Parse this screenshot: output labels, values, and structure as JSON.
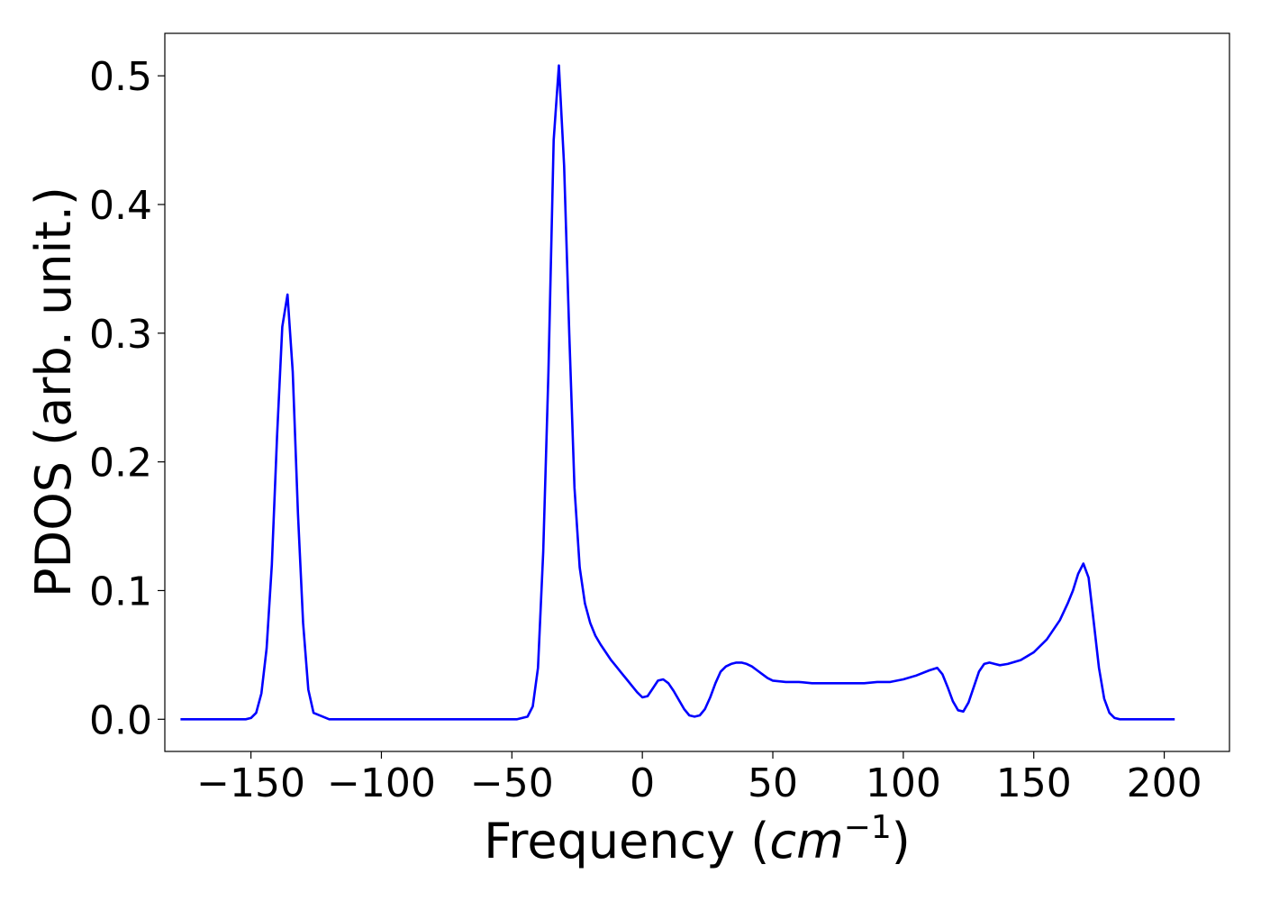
{
  "chart_data": {
    "type": "line",
    "xlabel_prefix": "Frequency (",
    "xlabel_math": "cm",
    "xlabel_exponent": "−1",
    "xlabel_suffix": ")",
    "ylabel": "PDOS (arb. unit.)",
    "xlim": [
      -183,
      225
    ],
    "ylim": [
      -0.025,
      0.533
    ],
    "xticks": [
      -150,
      -100,
      -50,
      0,
      50,
      100,
      150,
      200
    ],
    "xtick_labels": [
      "−150",
      "−100",
      "−50",
      "0",
      "50",
      "100",
      "150",
      "200"
    ],
    "yticks": [
      0.0,
      0.1,
      0.2,
      0.3,
      0.4,
      0.5
    ],
    "ytick_labels": [
      "0.0",
      "0.1",
      "0.2",
      "0.3",
      "0.4",
      "0.5"
    ],
    "grid": false,
    "series": [
      {
        "color": "#0000ff",
        "x": [
          -177,
          -160,
          -152,
          -150,
          -148,
          -146,
          -144,
          -142,
          -140,
          -138,
          -136,
          -134,
          -132,
          -130,
          -128,
          -126,
          -120,
          -100,
          -80,
          -60,
          -48,
          -44,
          -42,
          -40,
          -38,
          -36,
          -34,
          -32,
          -30,
          -28,
          -26,
          -24,
          -22,
          -20,
          -18,
          -16,
          -14,
          -12,
          -10,
          -8,
          -6,
          -4,
          -2,
          0,
          2,
          4,
          6,
          8,
          10,
          12,
          14,
          16,
          18,
          20,
          22,
          24,
          26,
          28,
          30,
          32,
          34,
          36,
          38,
          40,
          42,
          44,
          46,
          48,
          50,
          55,
          60,
          65,
          70,
          75,
          80,
          85,
          90,
          95,
          100,
          105,
          110,
          113,
          115,
          117,
          119,
          121,
          123,
          125,
          127,
          129,
          131,
          133,
          135,
          137,
          140,
          145,
          150,
          155,
          160,
          163,
          165,
          167,
          169,
          171,
          173,
          175,
          177,
          179,
          181,
          183,
          190,
          204
        ],
        "y": [
          0.0,
          0.0,
          0.0,
          0.001,
          0.005,
          0.02,
          0.055,
          0.12,
          0.22,
          0.305,
          0.33,
          0.27,
          0.16,
          0.075,
          0.023,
          0.005,
          0.0,
          0.0,
          0.0,
          0.0,
          0.0,
          0.002,
          0.01,
          0.04,
          0.13,
          0.27,
          0.45,
          0.508,
          0.43,
          0.3,
          0.18,
          0.118,
          0.09,
          0.075,
          0.065,
          0.058,
          0.052,
          0.046,
          0.041,
          0.036,
          0.031,
          0.026,
          0.021,
          0.017,
          0.018,
          0.024,
          0.03,
          0.031,
          0.028,
          0.022,
          0.015,
          0.008,
          0.003,
          0.002,
          0.003,
          0.008,
          0.017,
          0.028,
          0.037,
          0.041,
          0.043,
          0.044,
          0.044,
          0.043,
          0.041,
          0.038,
          0.035,
          0.032,
          0.03,
          0.029,
          0.029,
          0.028,
          0.028,
          0.028,
          0.028,
          0.028,
          0.029,
          0.029,
          0.031,
          0.034,
          0.038,
          0.04,
          0.035,
          0.025,
          0.014,
          0.007,
          0.006,
          0.013,
          0.025,
          0.037,
          0.043,
          0.044,
          0.043,
          0.042,
          0.043,
          0.046,
          0.052,
          0.062,
          0.077,
          0.09,
          0.1,
          0.113,
          0.121,
          0.11,
          0.075,
          0.04,
          0.016,
          0.005,
          0.001,
          0.0,
          0.0,
          0.0
        ]
      }
    ]
  }
}
